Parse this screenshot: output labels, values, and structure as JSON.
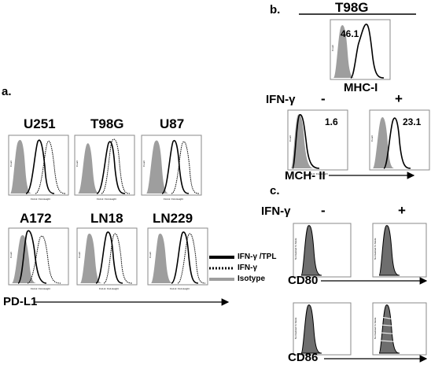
{
  "panels": {
    "a": {
      "letter": "a.",
      "cells": [
        "U251",
        "T98G",
        "U87",
        "A172",
        "LN18",
        "LN229"
      ],
      "marker": "PD-L1",
      "legend": [
        {
          "label": "IFN-γ /TPL",
          "style": "solid-black"
        },
        {
          "label": "IFN-γ",
          "style": "dotted-black"
        },
        {
          "label": "Isotype",
          "style": "solid-gray"
        }
      ]
    },
    "b": {
      "letter": "b.",
      "cell": "T98G",
      "mhc1_marker": "MHC-I",
      "mhc1_value": "46.1",
      "ifn_label": "IFN-γ",
      "minus": "-",
      "plus": "+",
      "mhc2_marker": "MCH- II",
      "mhc2_minus_value": "1.6",
      "mhc2_plus_value": "23.1"
    },
    "c": {
      "letter": "c.",
      "ifn_label": "IFN-γ",
      "minus": "-",
      "plus": "+",
      "marker1": "CD80",
      "marker2": "CD86"
    }
  },
  "colors": {
    "isotype_fill": "#9e9e9e",
    "line_black": "#000000",
    "frame": "#8a8a8a"
  }
}
